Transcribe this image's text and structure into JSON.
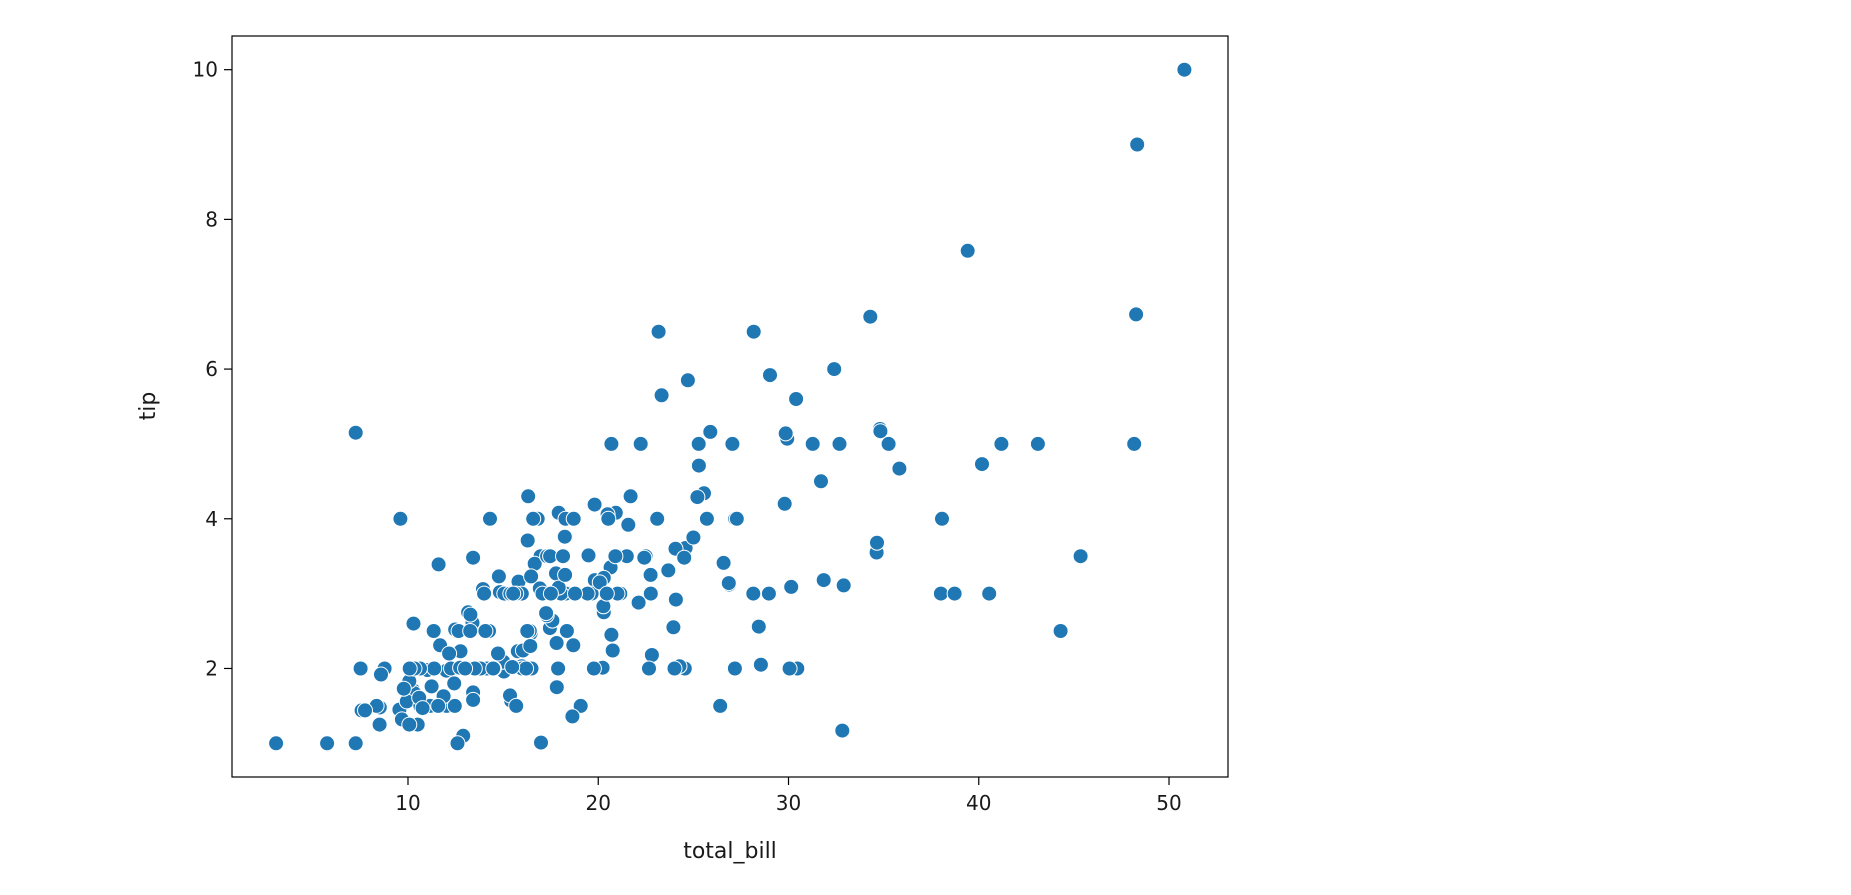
{
  "chart_data": {
    "type": "scatter",
    "title": "",
    "xlabel": "total_bill",
    "ylabel": "tip",
    "xlim": [
      0.75,
      53.1
    ],
    "ylim": [
      0.55,
      10.45
    ],
    "xticks": [
      10,
      20,
      30,
      40,
      50
    ],
    "yticks": [
      2,
      4,
      6,
      8,
      10
    ],
    "grid": false,
    "legend": "none",
    "colors": {
      "point_fill": "#1f77b4",
      "point_edge": "#ffffff",
      "axes": "#000000"
    },
    "x": [
      16.99,
      10.34,
      21.01,
      23.68,
      24.59,
      25.29,
      8.77,
      26.88,
      15.04,
      14.78,
      10.27,
      35.26,
      15.42,
      18.43,
      14.83,
      21.58,
      10.33,
      16.29,
      16.97,
      20.65,
      17.92,
      20.29,
      15.77,
      39.42,
      19.82,
      17.81,
      13.37,
      12.69,
      21.7,
      19.65,
      9.55,
      18.35,
      15.06,
      20.69,
      17.78,
      24.06,
      16.31,
      16.93,
      18.69,
      31.27,
      16.04,
      17.46,
      13.94,
      9.68,
      30.4,
      18.29,
      22.23,
      32.4,
      28.55,
      18.04,
      12.54,
      10.29,
      34.81,
      9.94,
      25.56,
      19.49,
      38.01,
      26.41,
      11.24,
      48.27,
      20.29,
      13.81,
      11.02,
      18.29,
      17.59,
      20.08,
      16.45,
      3.07,
      20.23,
      15.01,
      12.02,
      17.07,
      26.86,
      25.28,
      14.73,
      10.51,
      17.92,
      27.2,
      22.76,
      17.29,
      19.44,
      16.66,
      10.07,
      32.68,
      15.98,
      34.83,
      13.03,
      18.28,
      24.71,
      21.16,
      28.97,
      22.49,
      5.75,
      16.32,
      22.75,
      40.17,
      27.28,
      12.03,
      21.01,
      12.46,
      11.35,
      15.38,
      44.3,
      22.42,
      20.92,
      15.36,
      20.49,
      25.21,
      18.24,
      14.31,
      14.0,
      7.25,
      38.07,
      23.95,
      25.71,
      17.31,
      29.93,
      10.65,
      12.43,
      24.08,
      11.69,
      13.42,
      14.26,
      15.95,
      12.48,
      29.8,
      8.52,
      14.52,
      11.38,
      22.82,
      19.08,
      20.27,
      11.17,
      12.26,
      18.26,
      8.51,
      10.33,
      14.15,
      16.0,
      13.16,
      17.47,
      34.3,
      41.19,
      27.05,
      16.43,
      8.35,
      18.64,
      11.87,
      9.78,
      7.51,
      14.07,
      13.13,
      17.26,
      24.55,
      19.77,
      29.85,
      48.17,
      25.0,
      13.39,
      16.49,
      21.5,
      12.66,
      16.21,
      13.81,
      17.51,
      24.52,
      20.76,
      31.71,
      10.59,
      10.63,
      50.81,
      15.81,
      7.25,
      31.85,
      16.82,
      32.9,
      17.89,
      14.48,
      9.6,
      34.63,
      34.65,
      23.33,
      45.35,
      23.17,
      40.55,
      20.69,
      20.9,
      30.46,
      18.15,
      23.1,
      15.69,
      19.81,
      28.44,
      15.48,
      16.58,
      7.56,
      10.34,
      43.11,
      13.0,
      13.51,
      18.71,
      12.74,
      13.0,
      16.4,
      20.53,
      16.47,
      26.59,
      38.73,
      24.27,
      12.76,
      30.06,
      25.89,
      48.33,
      13.27,
      28.17,
      12.9,
      28.15,
      11.59,
      7.74,
      30.14,
      12.16,
      13.42,
      8.58,
      15.98,
      13.42,
      16.27,
      10.09,
      20.45,
      13.28,
      22.12,
      24.01,
      15.69,
      11.61,
      10.77,
      15.53,
      10.07,
      12.6,
      32.83,
      35.83,
      29.03,
      27.18,
      22.67,
      17.82,
      18.78
    ],
    "y": [
      1.01,
      1.66,
      3.5,
      3.31,
      3.61,
      4.71,
      2.0,
      3.12,
      1.96,
      3.23,
      1.71,
      5.0,
      1.57,
      3.0,
      3.02,
      3.92,
      1.67,
      3.71,
      3.5,
      3.35,
      4.08,
      2.75,
      2.23,
      7.58,
      3.18,
      2.34,
      2.0,
      2.0,
      4.3,
      3.0,
      1.45,
      2.5,
      3.0,
      2.45,
      3.27,
      3.6,
      2.0,
      3.07,
      2.31,
      5.0,
      2.24,
      2.54,
      3.06,
      1.32,
      5.6,
      3.0,
      5.0,
      6.0,
      2.05,
      3.0,
      2.5,
      2.6,
      5.2,
      1.56,
      4.34,
      3.51,
      3.0,
      1.5,
      1.76,
      6.73,
      3.21,
      2.0,
      1.98,
      3.76,
      2.64,
      3.15,
      2.47,
      1.0,
      2.01,
      2.09,
      1.97,
      3.0,
      3.14,
      5.0,
      2.2,
      1.25,
      3.08,
      4.0,
      3.0,
      2.71,
      3.0,
      3.4,
      1.83,
      5.0,
      2.03,
      5.17,
      2.0,
      4.0,
      5.85,
      3.0,
      3.0,
      3.5,
      1.0,
      4.3,
      3.25,
      4.73,
      4.0,
      1.5,
      3.0,
      1.5,
      2.5,
      3.0,
      2.5,
      3.48,
      4.08,
      1.64,
      4.06,
      4.29,
      3.76,
      4.0,
      3.0,
      1.0,
      4.0,
      2.55,
      4.0,
      3.5,
      5.07,
      1.5,
      1.8,
      2.92,
      2.31,
      1.68,
      2.5,
      2.0,
      2.52,
      4.2,
      1.48,
      2.0,
      2.0,
      2.18,
      1.5,
      2.83,
      1.5,
      2.0,
      3.25,
      1.25,
      2.0,
      2.0,
      2.0,
      2.75,
      3.5,
      6.7,
      5.0,
      5.0,
      2.3,
      1.5,
      1.36,
      1.63,
      1.73,
      2.0,
      2.5,
      2.0,
      2.74,
      2.0,
      2.0,
      5.14,
      5.0,
      3.75,
      2.61,
      2.0,
      3.5,
      2.5,
      2.0,
      2.0,
      3.0,
      3.48,
      2.24,
      4.5,
      1.61,
      2.0,
      10.0,
      3.16,
      5.15,
      3.18,
      4.0,
      3.11,
      2.0,
      2.0,
      4.0,
      3.55,
      3.68,
      5.65,
      3.5,
      6.5,
      3.0,
      5.0,
      3.5,
      2.0,
      3.5,
      4.0,
      1.5,
      4.19,
      2.56,
      2.02,
      4.0,
      1.44,
      2.0,
      5.0,
      2.0,
      2.0,
      4.0,
      2.01,
      2.0,
      2.5,
      4.0,
      3.23,
      3.41,
      3.0,
      2.03,
      2.23,
      2.0,
      5.16,
      9.0,
      2.5,
      6.5,
      1.1,
      3.0,
      1.5,
      1.44,
      3.09,
      2.2,
      3.48,
      1.92,
      3.0,
      1.58,
      2.5,
      2.0,
      3.0,
      2.72,
      2.88,
      2.0,
      3.0,
      3.39,
      1.47,
      3.0,
      1.25,
      1.0,
      1.17,
      4.67,
      5.92,
      2.0,
      2.0,
      1.75,
      3.0
    ]
  }
}
